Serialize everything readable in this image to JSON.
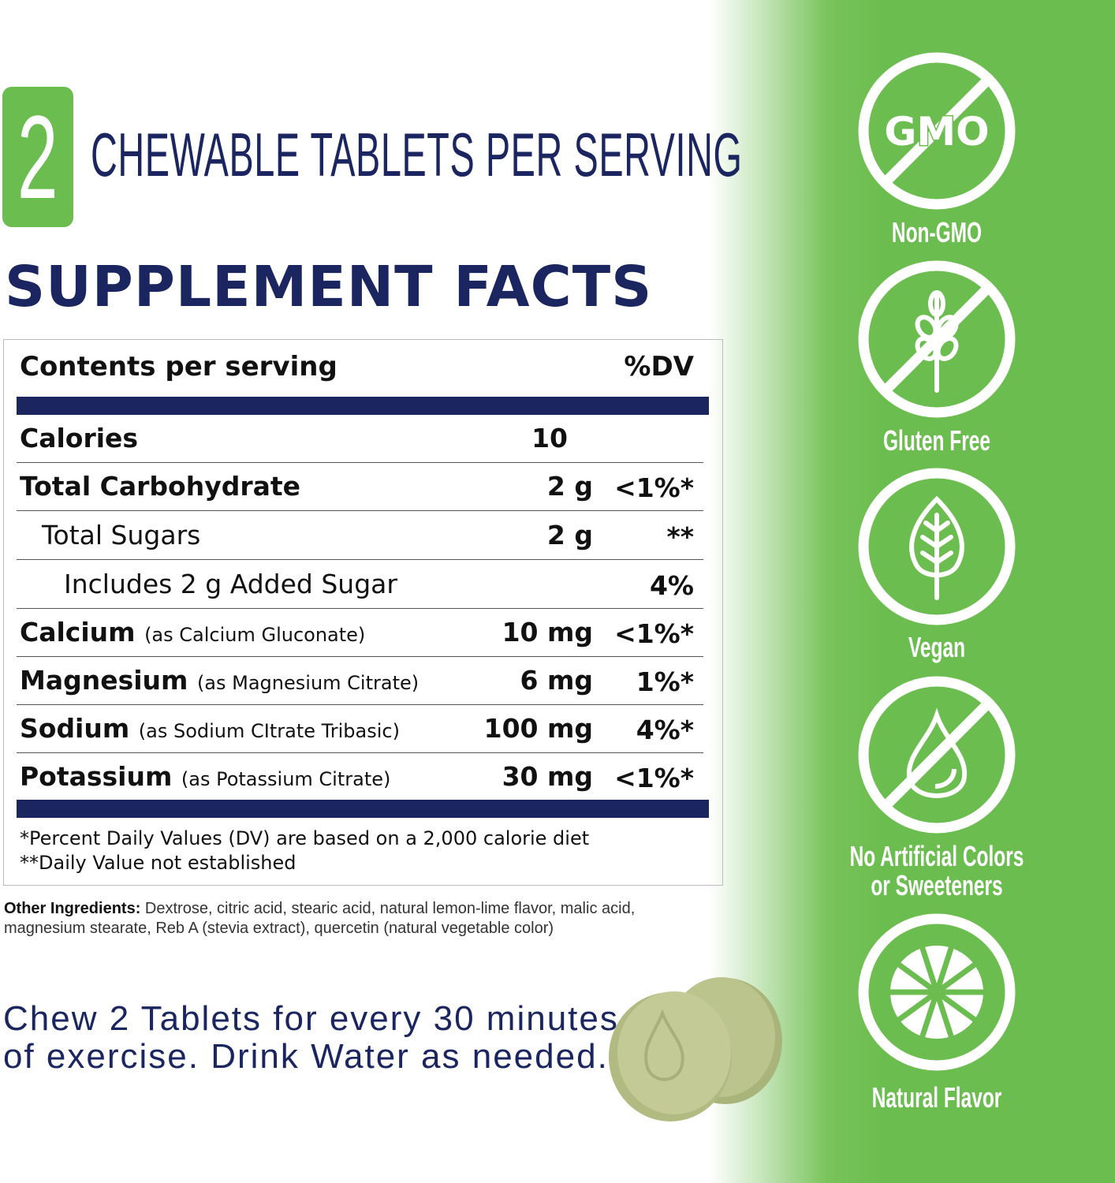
{
  "serving": {
    "count": "2",
    "label": "CHEWABLE TABLETS PER SERVING"
  },
  "title": "SUPPLEMENT FACTS",
  "table": {
    "header": {
      "contents": "Contents per serving",
      "dv": "%DV"
    },
    "rows": [
      {
        "name": "Calories",
        "source": "",
        "amount": "10",
        "dv": ""
      },
      {
        "name": "Total Carbohydrate",
        "source": "",
        "amount": "2 g",
        "dv": "<1%*"
      },
      {
        "name": "Total Sugars",
        "source": "",
        "amount": "2 g",
        "dv": "**"
      },
      {
        "name": "Includes 2 g Added Sugar",
        "source": "",
        "amount": "",
        "dv": "4%"
      },
      {
        "name": "Calcium",
        "source": "(as Calcium Gluconate)",
        "amount": "10 mg",
        "dv": "<1%*"
      },
      {
        "name": "Magnesium",
        "source": "(as Magnesium Citrate)",
        "amount": "6 mg",
        "dv": "1%*"
      },
      {
        "name": "Sodium",
        "source": "(as Sodium CItrate Tribasic)",
        "amount": "100 mg",
        "dv": "4%*"
      },
      {
        "name": "Potassium",
        "source": "(as Potassium Citrate)",
        "amount": "30 mg",
        "dv": "<1%*"
      }
    ],
    "footnotes": [
      "*Percent Daily Values (DV) are based on a 2,000 calorie diet",
      "**Daily Value not established"
    ]
  },
  "ingredients": {
    "label": "Other Ingredients:",
    "text": " Dextrose, citric acid, stearic acid, natural lemon-lime flavor, malic acid, magnesium stearate, Reb A (stevia extract), quercetin (natural vegetable color)"
  },
  "directions": [
    "Chew 2 Tablets for every 30 minutes",
    "of exercise. Drink Water as needed."
  ],
  "badges": [
    {
      "icon": "no-gmo-icon",
      "label": "Non-GMO",
      "icon_text": "GMO"
    },
    {
      "icon": "gluten-free-wheat-icon",
      "label": "Gluten Free"
    },
    {
      "icon": "vegan-leaf-icon",
      "label": "Vegan"
    },
    {
      "icon": "no-artificial-drop-icon",
      "label": "No Artificial Colors",
      "label2": "or Sweeteners"
    },
    {
      "icon": "citrus-slice-icon",
      "label": "Natural Flavor"
    }
  ],
  "colors": {
    "accent_green": "#6cbd4f",
    "navy": "#1b2560",
    "tablet": "#b9c28a"
  }
}
